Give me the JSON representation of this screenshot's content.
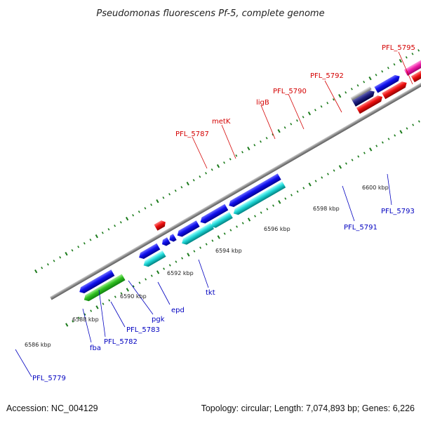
{
  "title": "Pseudomonas fluorescens Pf-5, complete genome",
  "footer": {
    "accession": "Accession: NC_004129",
    "summary": "Topology: circular; Length: 7,074,893 bp; Genes: 6,226"
  },
  "colors": {
    "backbone": "#8a8a8a",
    "tick": "#1a7a1a",
    "label_forward": "#d40000",
    "label_reverse": "#0000c0"
  },
  "kbp_labels": [
    "6586 kbp",
    "6588 kbp",
    "6590 kbp",
    "6592 kbp",
    "6594 kbp",
    "6596 kbp",
    "6598 kbp",
    "6600 kbp"
  ],
  "forward_gene_labels": [
    "PFL_5787",
    "metK",
    "ligB",
    "PFL_5790",
    "PFL_5792",
    "PFL_5795"
  ],
  "reverse_gene_labels": [
    "PFL_5779",
    "fba",
    "PFL_5782",
    "PFL_5783",
    "pgk",
    "epd",
    "tkt",
    "PFL_5791",
    "PFL_5793"
  ]
}
